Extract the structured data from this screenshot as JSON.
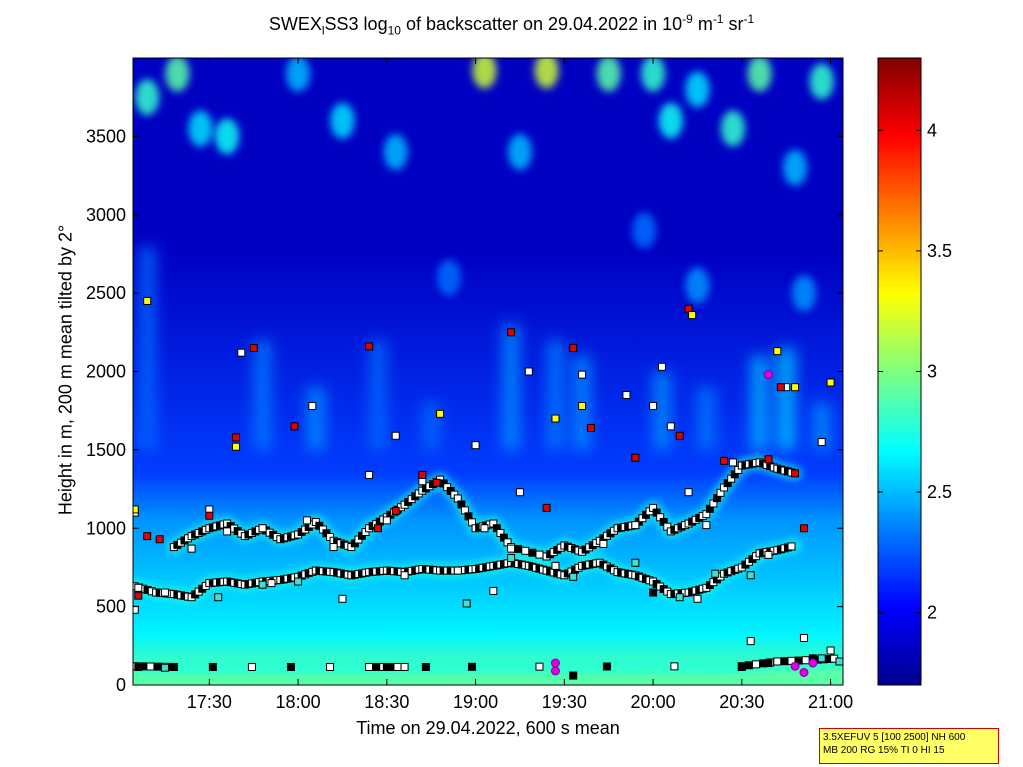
{
  "chart_data": {
    "type": "heatmap",
    "title_parts": {
      "a": "SWEX",
      "sub1": "l",
      "b": "SS3 log",
      "sub2": "10",
      "c": " of backscatter on 29.04.2022 in 10",
      "sup1": "-9",
      "d": " m",
      "sup2": "-1",
      "e": " sr",
      "sup3": "-1"
    },
    "xlabel": "Time on 29.04.2022, 600 s mean",
    "ylabel": "Height in m, 200 m mean tilted by 2°",
    "xlim_hours": [
      17.07,
      21.07
    ],
    "ylim": [
      0,
      4000
    ],
    "x_ticks": [
      {
        "label": "17:30",
        "value": 17.5
      },
      {
        "label": "18:00",
        "value": 18.0
      },
      {
        "label": "18:30",
        "value": 18.5
      },
      {
        "label": "19:00",
        "value": 19.0
      },
      {
        "label": "19:30",
        "value": 19.5
      },
      {
        "label": "20:00",
        "value": 20.0
      },
      {
        "label": "20:30",
        "value": 20.5
      },
      {
        "label": "21:00",
        "value": 21.0
      }
    ],
    "y_ticks": [
      {
        "label": "0",
        "value": 0
      },
      {
        "label": "500",
        "value": 500
      },
      {
        "label": "1000",
        "value": 1000
      },
      {
        "label": "1500",
        "value": 1500
      },
      {
        "label": "2000",
        "value": 2000
      },
      {
        "label": "2500",
        "value": 2500
      },
      {
        "label": "3000",
        "value": 3000
      },
      {
        "label": "3500",
        "value": 3500
      }
    ],
    "colorbar": {
      "range": [
        1.7,
        4.3
      ],
      "ticks": [
        {
          "label": "2",
          "value": 2
        },
        {
          "label": "2.5",
          "value": 2.5
        },
        {
          "label": "3",
          "value": 3
        },
        {
          "label": "3.5",
          "value": 3.5
        },
        {
          "label": "4",
          "value": 4
        }
      ]
    },
    "colormap": [
      "#00008f",
      "#0000ff",
      "#0080ff",
      "#00ffff",
      "#80ff80",
      "#ffff00",
      "#ff8000",
      "#ff0000",
      "#800000"
    ],
    "background": {
      "bands": [
        {
          "y0": 0,
          "y1": 150,
          "value": 2.9
        },
        {
          "y0": 150,
          "y1": 500,
          "value": 2.65
        },
        {
          "y0": 500,
          "y1": 900,
          "value": 2.52
        },
        {
          "y0": 900,
          "y1": 1200,
          "value": 2.4
        },
        {
          "y0": 1200,
          "y1": 1500,
          "value": 2.18
        },
        {
          "y0": 1500,
          "y1": 4000,
          "value": 1.85
        }
      ]
    },
    "layers": [
      {
        "name": "layer_low",
        "points": [
          [
            17.08,
            630
          ],
          [
            17.2,
            590
          ],
          [
            17.3,
            580
          ],
          [
            17.4,
            560
          ],
          [
            17.5,
            650
          ],
          [
            17.6,
            660
          ],
          [
            17.7,
            640
          ],
          [
            17.8,
            660
          ],
          [
            17.9,
            670
          ],
          [
            18.0,
            690
          ],
          [
            18.1,
            730
          ],
          [
            18.2,
            720
          ],
          [
            18.3,
            700
          ],
          [
            18.4,
            720
          ],
          [
            18.5,
            730
          ],
          [
            18.6,
            720
          ],
          [
            18.7,
            740
          ],
          [
            18.8,
            730
          ],
          [
            18.9,
            730
          ],
          [
            19.0,
            740
          ],
          [
            19.1,
            760
          ],
          [
            19.2,
            780
          ],
          [
            19.3,
            760
          ],
          [
            19.4,
            730
          ],
          [
            19.5,
            700
          ],
          [
            19.6,
            760
          ],
          [
            19.7,
            780
          ],
          [
            19.8,
            720
          ],
          [
            19.9,
            700
          ],
          [
            20.0,
            660
          ],
          [
            20.1,
            580
          ],
          [
            20.2,
            590
          ],
          [
            20.3,
            620
          ],
          [
            20.4,
            710
          ],
          [
            20.5,
            750
          ],
          [
            20.6,
            840
          ],
          [
            20.7,
            860
          ],
          [
            20.8,
            890
          ]
        ]
      },
      {
        "name": "layer_mid",
        "points": [
          [
            17.3,
            880
          ],
          [
            17.4,
            950
          ],
          [
            17.5,
            1000
          ],
          [
            17.6,
            1030
          ],
          [
            17.7,
            950
          ],
          [
            17.8,
            1000
          ],
          [
            17.9,
            930
          ],
          [
            18.0,
            960
          ],
          [
            18.1,
            1040
          ],
          [
            18.2,
            920
          ],
          [
            18.3,
            880
          ],
          [
            18.4,
            1000
          ],
          [
            18.5,
            1070
          ],
          [
            18.6,
            1150
          ],
          [
            18.7,
            1240
          ],
          [
            18.8,
            1310
          ],
          [
            18.9,
            1190
          ],
          [
            19.0,
            1000
          ],
          [
            19.1,
            1030
          ],
          [
            19.2,
            880
          ],
          [
            19.4,
            820
          ],
          [
            19.5,
            890
          ],
          [
            19.6,
            850
          ],
          [
            19.7,
            920
          ],
          [
            19.8,
            1000
          ],
          [
            19.9,
            1020
          ],
          [
            20.0,
            1130
          ],
          [
            20.1,
            980
          ],
          [
            20.2,
            1030
          ],
          [
            20.3,
            1090
          ],
          [
            20.4,
            1260
          ],
          [
            20.5,
            1400
          ],
          [
            20.6,
            1420
          ],
          [
            20.7,
            1380
          ],
          [
            20.8,
            1350
          ]
        ]
      },
      {
        "name": "layer_surface",
        "points": [
          [
            17.08,
            120
          ],
          [
            17.3,
            115
          ],
          [
            18.4,
            115
          ],
          [
            18.6,
            115
          ],
          [
            20.5,
            120
          ],
          [
            20.7,
            150
          ],
          [
            20.9,
            160
          ],
          [
            21.05,
            170
          ]
        ]
      }
    ],
    "aerosol_plumes": [
      {
        "x": 17.15,
        "y0": 1500,
        "y1": 2800,
        "value": 2.3
      },
      {
        "x": 17.8,
        "y0": 1500,
        "y1": 2200,
        "value": 2.35
      },
      {
        "x": 18.1,
        "y0": 1500,
        "y1": 1900,
        "value": 2.4
      },
      {
        "x": 18.45,
        "y0": 1500,
        "y1": 2200,
        "value": 2.3
      },
      {
        "x": 18.75,
        "y0": 1500,
        "y1": 1800,
        "value": 2.3
      },
      {
        "x": 19.2,
        "y0": 1500,
        "y1": 2300,
        "value": 2.4
      },
      {
        "x": 19.45,
        "y0": 1500,
        "y1": 2200,
        "value": 2.35
      },
      {
        "x": 19.6,
        "y0": 1500,
        "y1": 2100,
        "value": 2.4
      },
      {
        "x": 20.05,
        "y0": 1500,
        "y1": 2000,
        "value": 2.4
      },
      {
        "x": 20.3,
        "y0": 1500,
        "y1": 1900,
        "value": 2.35
      },
      {
        "x": 20.6,
        "y0": 1500,
        "y1": 2100,
        "value": 2.5
      },
      {
        "x": 20.75,
        "y0": 1500,
        "y1": 2150,
        "value": 2.55
      },
      {
        "x": 20.95,
        "y0": 1500,
        "y1": 1800,
        "value": 2.4
      }
    ],
    "upper_patches": [
      {
        "x": 17.15,
        "y": 3750,
        "value": 2.8
      },
      {
        "x": 17.32,
        "y": 3900,
        "value": 2.9
      },
      {
        "x": 17.45,
        "y": 3550,
        "value": 2.6
      },
      {
        "x": 17.6,
        "y": 3500,
        "value": 2.7
      },
      {
        "x": 18.0,
        "y": 3900,
        "value": 2.5
      },
      {
        "x": 18.25,
        "y": 3600,
        "value": 2.6
      },
      {
        "x": 18.55,
        "y": 3400,
        "value": 2.5
      },
      {
        "x": 19.05,
        "y": 3920,
        "value": 3.2
      },
      {
        "x": 19.4,
        "y": 3920,
        "value": 3.2
      },
      {
        "x": 19.25,
        "y": 3400,
        "value": 2.5
      },
      {
        "x": 19.75,
        "y": 3900,
        "value": 2.9
      },
      {
        "x": 20.0,
        "y": 3900,
        "value": 2.8
      },
      {
        "x": 20.1,
        "y": 3600,
        "value": 2.7
      },
      {
        "x": 20.25,
        "y": 3800,
        "value": 2.6
      },
      {
        "x": 20.45,
        "y": 3550,
        "value": 2.8
      },
      {
        "x": 20.6,
        "y": 3900,
        "value": 2.9
      },
      {
        "x": 20.8,
        "y": 3300,
        "value": 2.5
      },
      {
        "x": 20.95,
        "y": 3850,
        "value": 2.8
      },
      {
        "x": 18.85,
        "y": 2600,
        "value": 2.3
      },
      {
        "x": 19.95,
        "y": 2900,
        "value": 2.3
      },
      {
        "x": 20.25,
        "y": 2550,
        "value": 2.4
      },
      {
        "x": 20.85,
        "y": 2500,
        "value": 2.4
      }
    ],
    "markers_white": [
      [
        17.08,
        1100
      ],
      [
        17.08,
        480
      ],
      [
        17.1,
        620
      ],
      [
        17.25,
        590
      ],
      [
        17.4,
        870
      ],
      [
        17.5,
        1120
      ],
      [
        17.6,
        980
      ],
      [
        17.68,
        2120
      ],
      [
        17.8,
        1000
      ],
      [
        17.85,
        650
      ],
      [
        18.05,
        1050
      ],
      [
        18.08,
        1780
      ],
      [
        18.2,
        880
      ],
      [
        18.25,
        550
      ],
      [
        18.4,
        1340
      ],
      [
        18.5,
        1050
      ],
      [
        18.55,
        1590
      ],
      [
        18.6,
        700
      ],
      [
        18.7,
        1300
      ],
      [
        18.9,
        730
      ],
      [
        19.0,
        1530
      ],
      [
        19.05,
        1000
      ],
      [
        19.1,
        600
      ],
      [
        19.2,
        870
      ],
      [
        19.25,
        1230
      ],
      [
        19.3,
        2000
      ],
      [
        19.45,
        760
      ],
      [
        19.6,
        1980
      ],
      [
        19.72,
        900
      ],
      [
        19.85,
        1850
      ],
      [
        19.9,
        1020
      ],
      [
        20.0,
        1780
      ],
      [
        20.05,
        2030
      ],
      [
        20.1,
        1650
      ],
      [
        20.2,
        1230
      ],
      [
        20.25,
        550
      ],
      [
        20.3,
        1020
      ],
      [
        20.45,
        1420
      ],
      [
        20.55,
        280
      ],
      [
        20.65,
        830
      ],
      [
        20.75,
        1900
      ],
      [
        20.85,
        300
      ],
      [
        20.95,
        1550
      ],
      [
        21.0,
        220
      ]
    ],
    "markers_black": [
      [
        17.1,
        115
      ],
      [
        17.3,
        115
      ],
      [
        18.5,
        115
      ],
      [
        18.72,
        115
      ],
      [
        19.55,
        60
      ],
      [
        20.0,
        590
      ],
      [
        20.5,
        115
      ],
      [
        20.65,
        140
      ],
      [
        20.9,
        170
      ]
    ],
    "markers_cyan": [
      [
        17.25,
        110
      ],
      [
        17.55,
        560
      ],
      [
        17.8,
        640
      ],
      [
        18.0,
        660
      ],
      [
        18.95,
        520
      ],
      [
        19.2,
        810
      ],
      [
        19.55,
        690
      ],
      [
        19.9,
        780
      ],
      [
        20.15,
        560
      ],
      [
        20.35,
        710
      ],
      [
        20.55,
        700
      ],
      [
        20.95,
        170
      ],
      [
        21.05,
        150
      ]
    ],
    "markers_red": [
      [
        17.1,
        570
      ],
      [
        17.15,
        950
      ],
      [
        17.22,
        930
      ],
      [
        17.5,
        1080
      ],
      [
        17.65,
        1580
      ],
      [
        17.75,
        2150
      ],
      [
        17.98,
        1650
      ],
      [
        18.4,
        2160
      ],
      [
        18.45,
        1000
      ],
      [
        18.55,
        1110
      ],
      [
        18.7,
        1340
      ],
      [
        18.78,
        1290
      ],
      [
        19.2,
        2250
      ],
      [
        19.4,
        1130
      ],
      [
        19.55,
        2150
      ],
      [
        19.65,
        1640
      ],
      [
        19.9,
        1450
      ],
      [
        20.15,
        1590
      ],
      [
        20.2,
        2400
      ],
      [
        20.4,
        1430
      ],
      [
        20.65,
        1440
      ],
      [
        20.72,
        1900
      ],
      [
        20.8,
        1350
      ],
      [
        20.85,
        1000
      ]
    ],
    "markers_yellow": [
      [
        17.08,
        1120
      ],
      [
        17.15,
        2450
      ],
      [
        17.65,
        1520
      ],
      [
        18.8,
        1730
      ],
      [
        19.45,
        1700
      ],
      [
        19.6,
        1780
      ],
      [
        20.22,
        2360
      ],
      [
        20.7,
        2130
      ],
      [
        20.8,
        1900
      ],
      [
        21.0,
        1930
      ]
    ],
    "markers_magenta": [
      [
        19.45,
        90
      ],
      [
        19.45,
        140
      ],
      [
        20.65,
        1980
      ],
      [
        20.8,
        120
      ],
      [
        20.85,
        80
      ],
      [
        20.9,
        140
      ]
    ]
  },
  "info_box": {
    "line1": "3.5XEFUV 5 [100 2500] NH 600",
    "line2": "MB 200 RG 15% TI 0 HI 15"
  }
}
